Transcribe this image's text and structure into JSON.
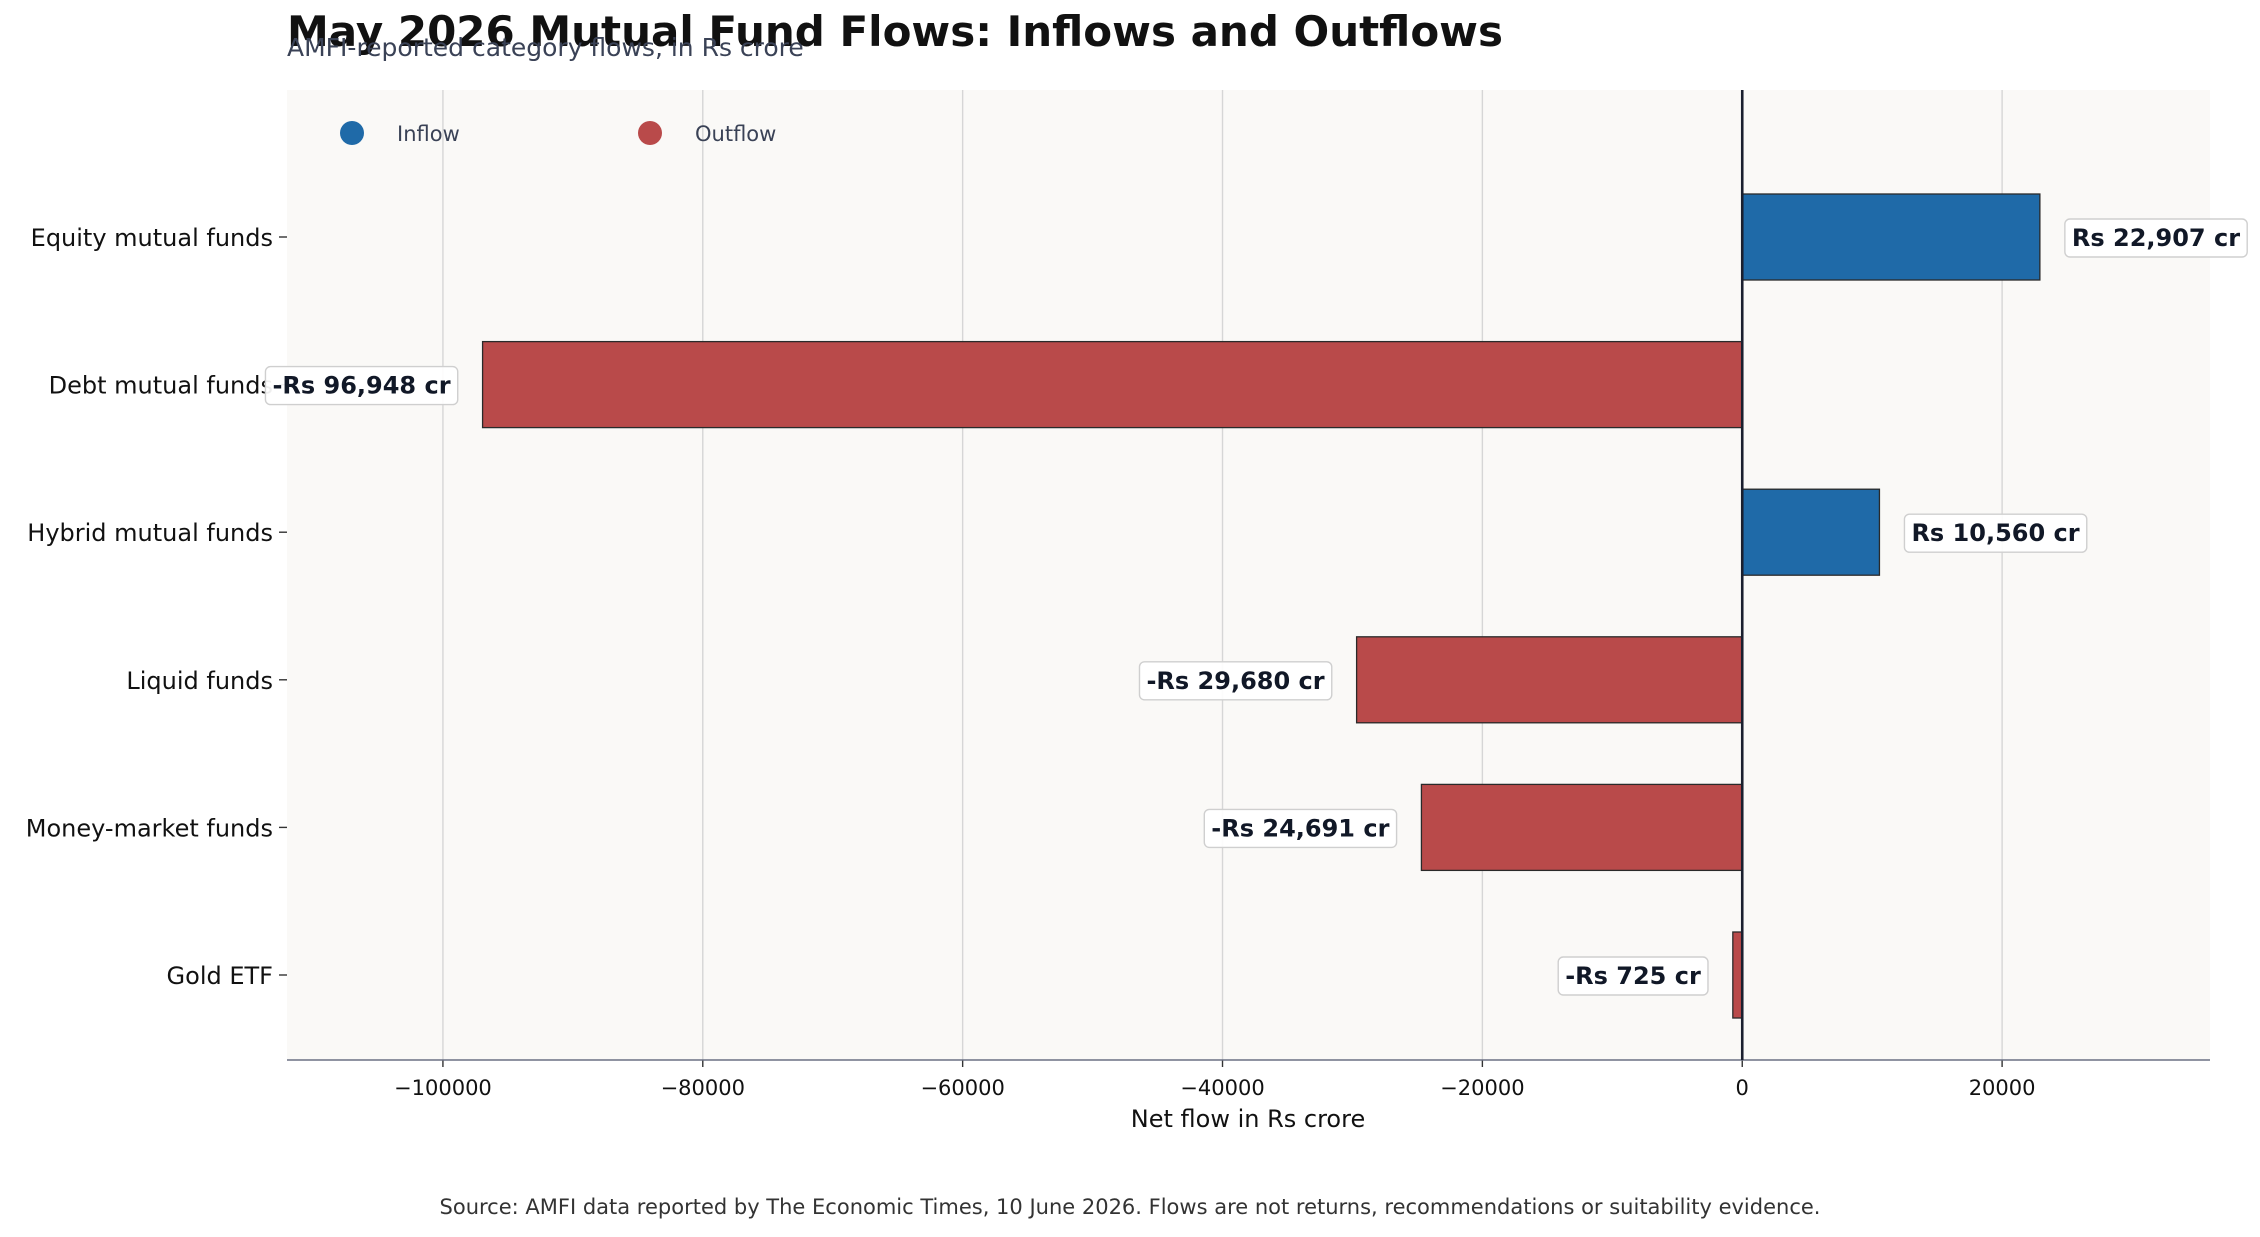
{
  "chart_data": {
    "type": "bar",
    "orientation": "horizontal",
    "title": "May 2026 Mutual Fund Flows: Inflows and Outflows",
    "subtitle": "AMFI-reported category flows, in Rs crore",
    "xlabel": "Net flow in Rs crore",
    "ylabel": "",
    "xlim": [
      -112000,
      36000
    ],
    "xticks": [
      -100000,
      -80000,
      -60000,
      -40000,
      -20000,
      0,
      20000
    ],
    "xtick_labels": [
      "−100000",
      "−80000",
      "−60000",
      "−40000",
      "−20000",
      "0",
      "20000"
    ],
    "grid": "vertical",
    "legend_position": "top-left",
    "legend": [
      {
        "name": "Inflow",
        "color": "#1f6aa8"
      },
      {
        "name": "Outflow",
        "color": "#b94a4a"
      }
    ],
    "categories": [
      "Equity mutual funds",
      "Debt mutual funds",
      "Hybrid mutual funds",
      "Liquid funds",
      "Money-market funds",
      "Gold ETF"
    ],
    "values": [
      22907,
      -96948,
      10560,
      -29680,
      -24691,
      -725
    ],
    "data_labels": [
      "Rs 22,907 cr",
      "-Rs 96,948 cr",
      "Rs 10,560 cr",
      "-Rs 29,680 cr",
      "-Rs 24,691 cr",
      "-Rs 725 cr"
    ],
    "colors": {
      "inflow": "#1f6aa8",
      "outflow": "#b94a4a",
      "plot_background": "#faf9f7",
      "zero_line": "#1a1f2e",
      "grid": "#d6d6d6",
      "text": "#111111",
      "muted_text": "#3a4256"
    },
    "source": "Source: AMFI data reported by The Economic Times, 10 June 2026. Flows are not returns, recommendations or suitability evidence."
  }
}
